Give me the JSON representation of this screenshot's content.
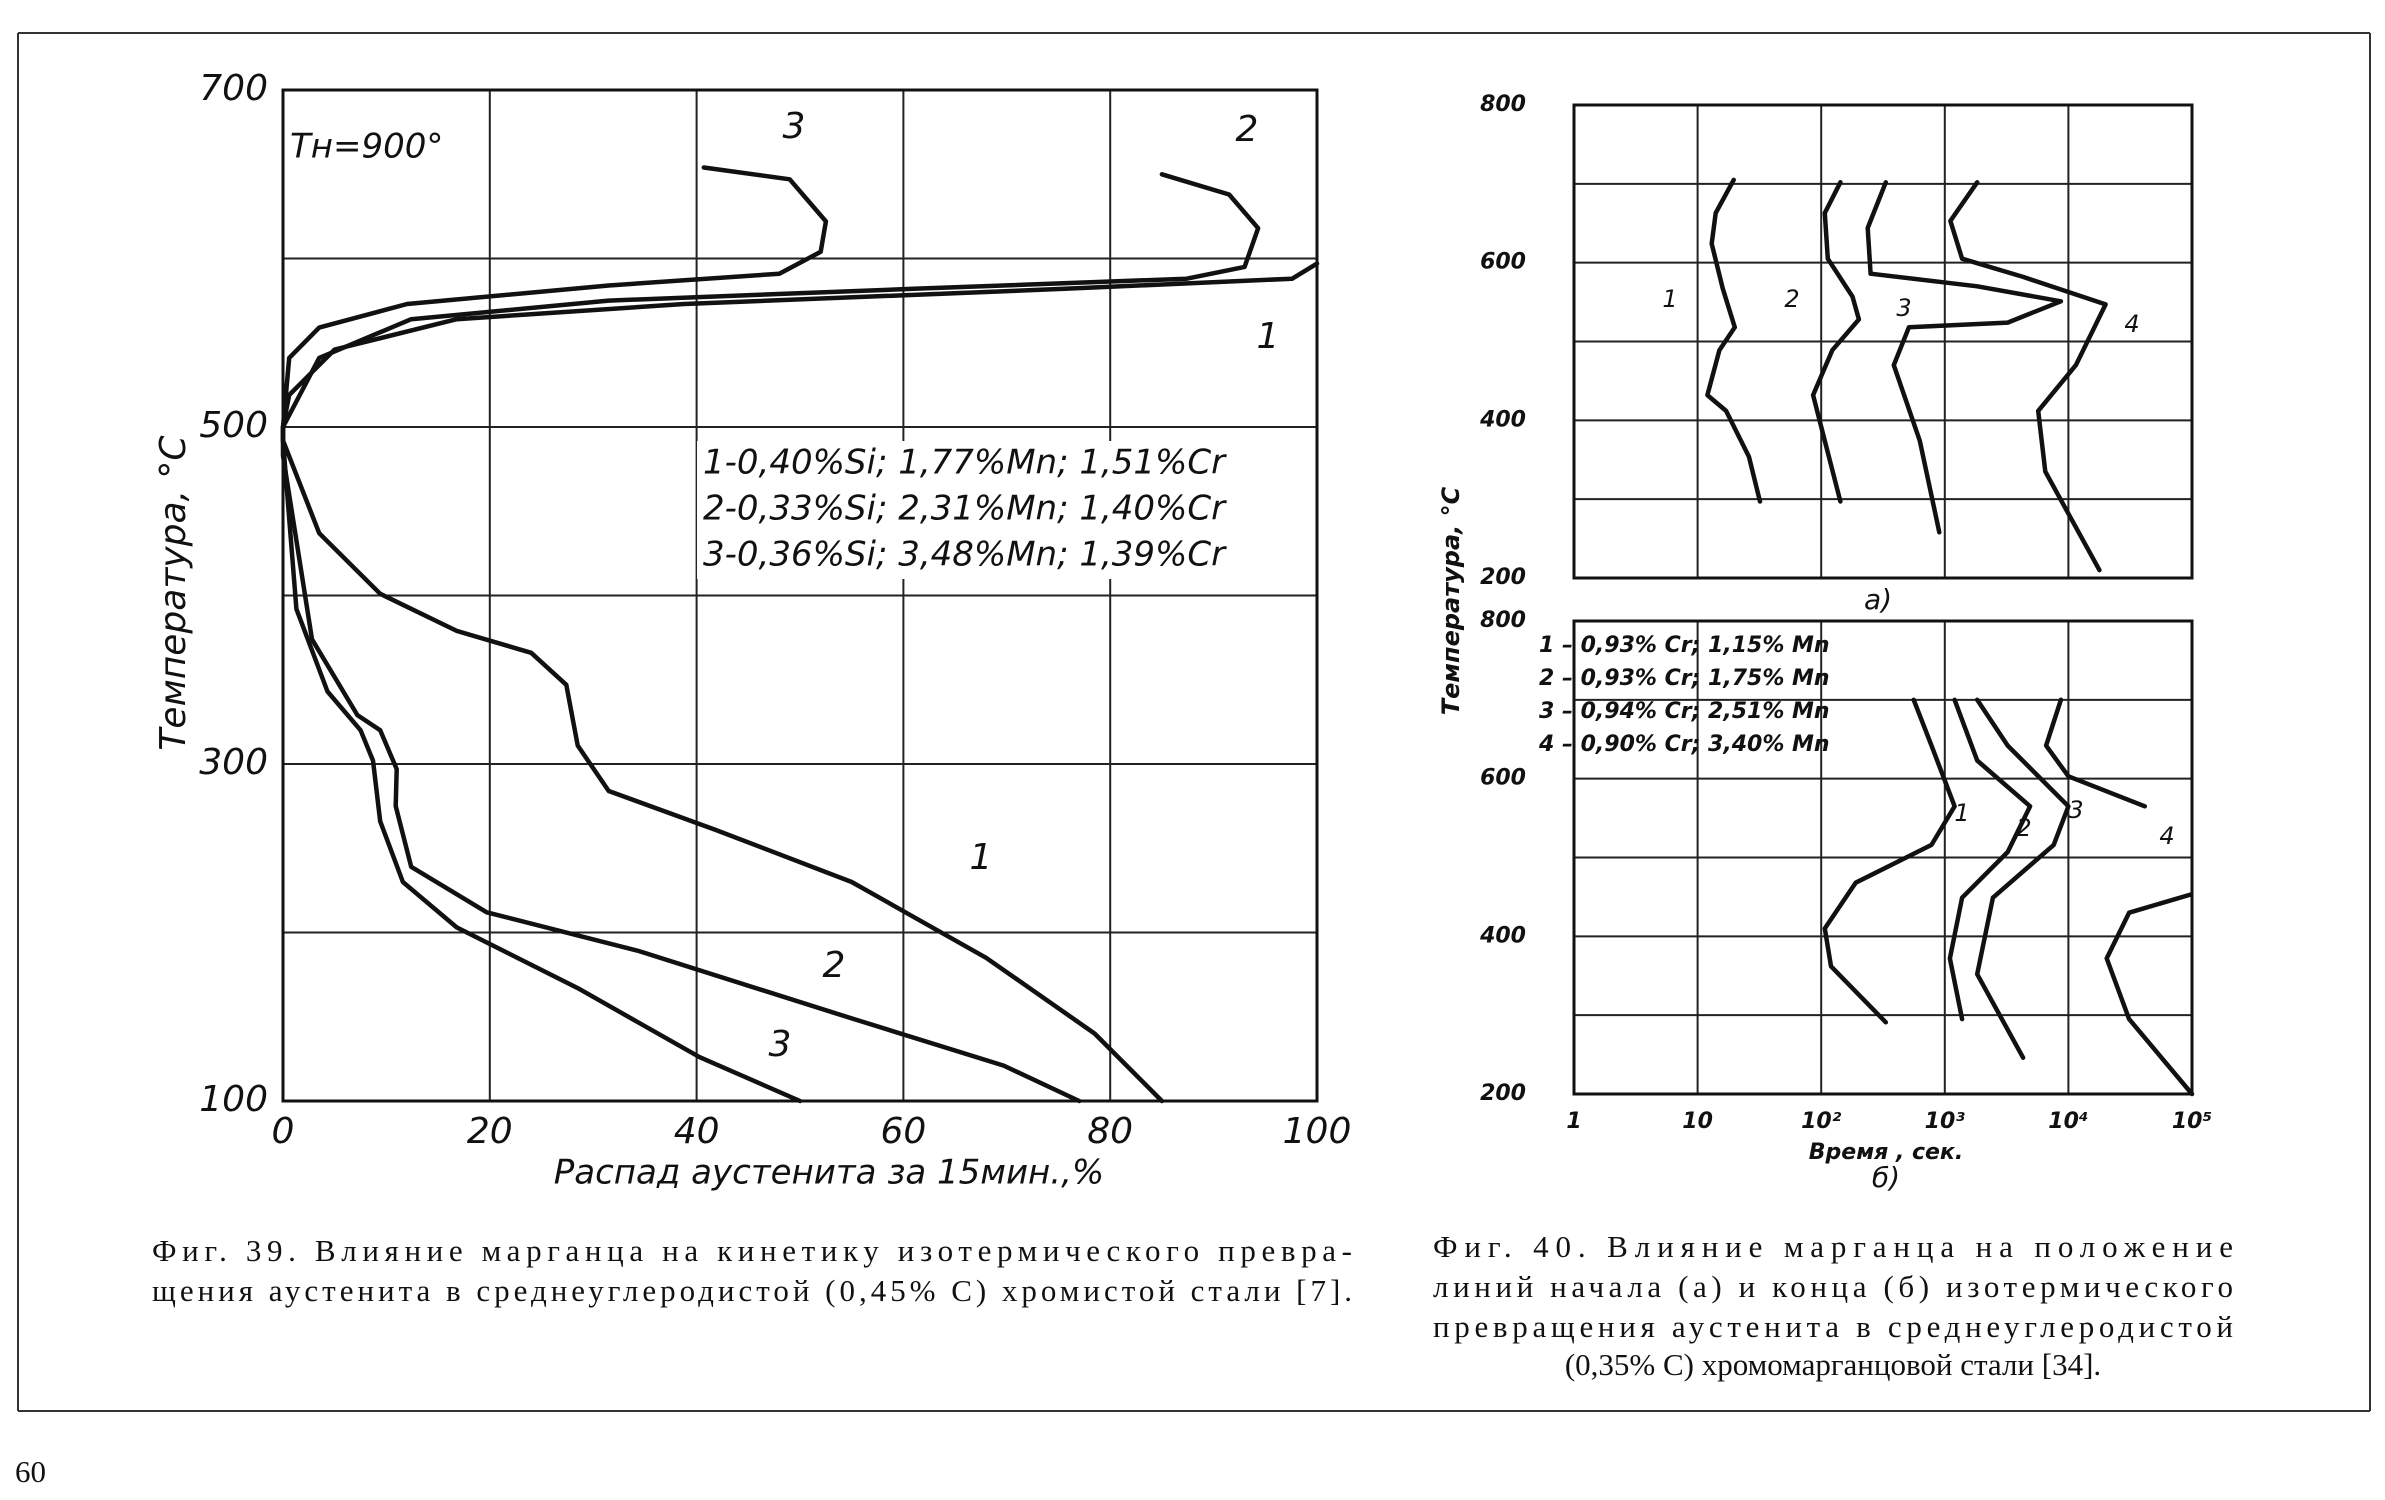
{
  "chart_data": [
    {
      "type": "line",
      "xlabel": "Распад аустенита за 15мин.,%",
      "ylabel": "Температура, °С",
      "annotation": "Tн=900°",
      "xlim": [
        0,
        100
      ],
      "ylim": [
        100,
        700
      ],
      "xticks": [
        0,
        20,
        40,
        60,
        80,
        100
      ],
      "yticks": [
        100,
        {
          "value": 200,
          "label": null
        },
        300,
        {
          "value": 400,
          "label": null
        },
        500,
        {
          "value": 600,
          "label": null
        },
        700
      ],
      "grid": true,
      "legend": [
        "1-0,40%Si; 1,77%Mn; 1,51%Cr",
        "2-0,33%Si; 2,31%Mn; 1,40%Cr",
        "3-0,36%Si; 3,48%Mn; 1,39%Cr"
      ],
      "series": [
        {
          "name": "1",
          "color": "#111111",
          "x": [
            100,
            97.6,
            75.6,
            38.8,
            16.8,
            5,
            0.6,
            0,
            0,
            3.5,
            9.4,
            16.8,
            24,
            27.4,
            28.5,
            31.5,
            41.8,
            55,
            68,
            78.5,
            85
          ],
          "values": [
            597,
            588,
            582,
            573,
            564,
            546,
            519,
            500,
            492,
            437,
            401,
            379,
            366,
            347,
            311,
            284,
            261,
            230,
            185,
            140,
            100
          ]
        },
        {
          "name": "2",
          "color": "#111111",
          "x": [
            85,
            91.5,
            94.3,
            93,
            87.4,
            61,
            31.5,
            12.4,
            3.5,
            0,
            0,
            2.8,
            7.2,
            9.4,
            11,
            10.9,
            12.4,
            19.7,
            34.4,
            55,
            69.7,
            77
          ],
          "values": [
            650,
            638,
            618,
            595,
            588,
            582,
            575,
            564,
            541,
            500,
            483,
            374,
            329,
            320,
            297,
            275,
            239,
            212,
            189,
            149,
            121,
            100
          ]
        },
        {
          "name": "3",
          "color": "#111111",
          "x": [
            40.7,
            49,
            52.5,
            52,
            48,
            31.5,
            12,
            3.5,
            0.6,
            0,
            0,
            1.3,
            4.3,
            7.5,
            8.7,
            9.4,
            11.6,
            16.8,
            28.5,
            40.3,
            50
          ],
          "values": [
            654,
            647,
            622,
            604,
            591,
            584,
            573,
            559,
            541,
            500,
            492,
            392,
            343,
            320,
            302,
            266,
            230,
            203,
            167,
            126,
            100
          ]
        }
      ]
    },
    {
      "type": "line",
      "ylabel": "Температура, °С",
      "panel_label": "а)",
      "xscale": "log",
      "xlim": [
        1,
        100000
      ],
      "ylim": [
        200,
        800
      ],
      "xticks": [
        {
          "value": 1,
          "label": null
        },
        {
          "value": 10,
          "label": null
        },
        {
          "value": 100,
          "label": null
        },
        {
          "value": 1000,
          "label": null
        },
        {
          "value": 10000,
          "label": null
        },
        {
          "value": 100000,
          "label": null
        }
      ],
      "yticks": [
        200,
        {
          "value": 300,
          "label": null
        },
        400,
        {
          "value": 500,
          "label": null
        },
        600,
        {
          "value": 700,
          "label": null
        },
        800
      ],
      "grid": true,
      "series": [
        {
          "name": "1",
          "color": "#111111",
          "x": [
            19.6,
            14,
            13,
            16,
            20,
            15,
            12,
            17,
            26,
            32
          ],
          "values": [
            705,
            663,
            624,
            567,
            518,
            489,
            432,
            412,
            354,
            297
          ]
        },
        {
          "name": "2",
          "color": "#111111",
          "x": [
            143,
            107,
            113,
            179,
            202,
            123,
            86,
            107,
            143
          ],
          "values": [
            702,
            663,
            605,
            557,
            528,
            489,
            432,
            374,
            297
          ]
        },
        {
          "name": "3",
          "color": "#111111",
          "x": [
            333,
            238,
            251,
            1830,
            8700,
            3230,
            512,
            387,
            628,
            903
          ],
          "values": [
            702,
            644,
            586,
            570,
            551,
            524,
            518,
            470,
            374,
            258
          ]
        },
        {
          "name": "4",
          "color": "#111111",
          "x": [
            1830,
            1110,
            1380,
            4300,
            20000,
            11500,
            5700,
            6500,
            17800
          ],
          "values": [
            702,
            653,
            605,
            582,
            547,
            470,
            412,
            335,
            210
          ]
        }
      ]
    },
    {
      "type": "line",
      "xlabel": "Время , сек.",
      "panel_label": "б)",
      "xscale": "log",
      "xlim": [
        1,
        100000
      ],
      "ylim": [
        200,
        800
      ],
      "xticks": [
        1,
        10,
        {
          "value": 100,
          "label": "10²"
        },
        {
          "value": 1000,
          "label": "10³"
        },
        {
          "value": 10000,
          "label": "10⁴"
        },
        {
          "value": 100000,
          "label": "10⁵"
        }
      ],
      "yticks": [
        200,
        {
          "value": 300,
          "label": null
        },
        400,
        {
          "value": 500,
          "label": null
        },
        600,
        {
          "value": 700,
          "label": null
        },
        800
      ],
      "grid": true,
      "legend": [
        "1 – 0,93% Cr; 1,15% Mn",
        "2 – 0,93% Cr; 1,75% Mn",
        "3 – 0,94% Cr; 2,51% Mn",
        "4 – 0,90% Cr; 3,40% Mn"
      ],
      "series": [
        {
          "name": "1",
          "color": "#111111",
          "x": [
            560,
            780,
            1200,
            780,
            190,
            107,
            120,
            333
          ],
          "values": [
            700,
            642,
            565,
            516,
            468,
            410,
            362,
            291
          ]
        },
        {
          "name": "2",
          "color": "#111111",
          "x": [
            1200,
            1830,
            4900,
            3230,
            1380,
            1100,
            1380
          ],
          "values": [
            700,
            623,
            565,
            507,
            449,
            372,
            295
          ]
        },
        {
          "name": "3",
          "color": "#111111",
          "x": [
            1830,
            3230,
            10000,
            7600,
            2450,
            1830,
            4300
          ],
          "values": [
            700,
            642,
            565,
            516,
            449,
            352,
            246
          ]
        },
        {
          "name": "4",
          "color": "#111111",
          "x": [
            8700,
            6600,
            10000,
            41500,
            null,
            97000,
            31000,
            20400,
            31000,
            100000
          ],
          "values": [
            700,
            642,
            603,
            565,
            null,
            453,
            430,
            372,
            295,
            200
          ]
        }
      ]
    }
  ],
  "captions": [
    [
      "Фиг. 39. Влияние марганца на кинетику изотермического превра-",
      "щения аустенита в среднеуглеродистой (0,45% С) хромистой стали [7]."
    ],
    [
      "Фиг. 40. Влияние марганца на положение",
      "линий начала (а) и конца (б) изотермического",
      "превращения аустенита в среднеуглеродистой",
      "(0,35% С) хромомарганцовой стали [34]."
    ]
  ],
  "page_number": "60"
}
